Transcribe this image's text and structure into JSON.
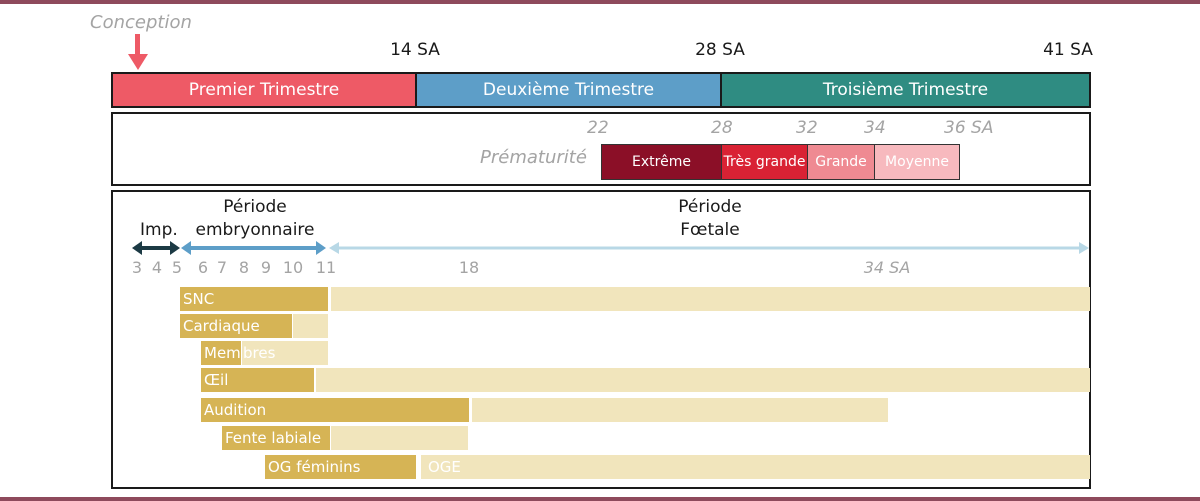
{
  "conception_label": "Conception",
  "week_labels": [
    "14 SA",
    "28 SA",
    "41 SA"
  ],
  "trimesters": [
    {
      "label": "Premier Trimestre",
      "color": "#ee5a66"
    },
    {
      "label": "Deuxième Trimestre",
      "color": "#5d9ec8"
    },
    {
      "label": "Troisième Trimestre",
      "color": "#2f8c82"
    }
  ],
  "prematurity": {
    "label": "Prématurité",
    "ticks": [
      "22",
      "28",
      "32",
      "34",
      "36 SA"
    ],
    "segments": [
      {
        "label": "Extrême",
        "color": "#8b0f27"
      },
      {
        "label": "Très grande",
        "color": "#d92234"
      },
      {
        "label": "Grande",
        "color": "#ef8a92"
      },
      {
        "label": "Moyenne",
        "color": "#f7b9be"
      }
    ]
  },
  "periods": {
    "implantation": "Imp.",
    "embryonic": [
      "Période",
      "embryonnaire"
    ],
    "fetal": [
      "Période",
      "Fœtale"
    ]
  },
  "week_ticks": [
    "3",
    "4",
    "5",
    "6",
    "7",
    "8",
    "9",
    "10",
    "11",
    "18",
    "34 SA"
  ],
  "organs": [
    {
      "label": "SNC"
    },
    {
      "label": "Cardiaque"
    },
    {
      "label_dark": "Mem",
      "label_light": "bres"
    },
    {
      "label": "Œil"
    },
    {
      "label": "Audition"
    },
    {
      "label": "Fente labiale"
    },
    {
      "label": "OG féminins",
      "label_light": "OGE"
    }
  ],
  "colors": {
    "sensitive_period": "#d6b455",
    "less_sensitive_period": "#f1e5bc",
    "implantation_arrow": "#1c3a44",
    "embryonic_arrow": "#5d9ec8",
    "fetal_arrow": "#b8d8e6"
  }
}
